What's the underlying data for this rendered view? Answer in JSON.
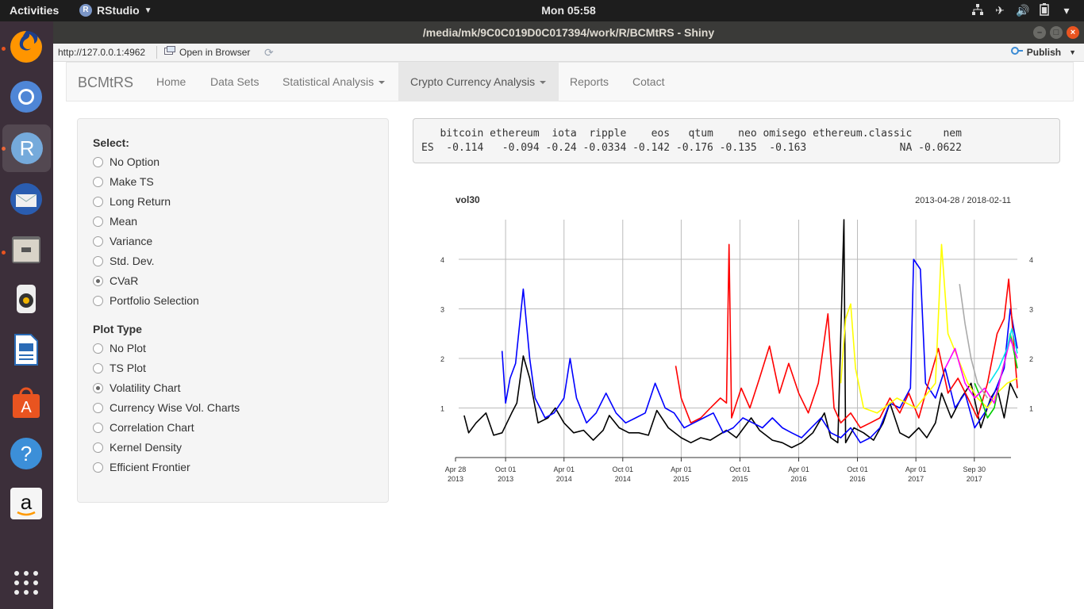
{
  "topbar": {
    "activities": "Activities",
    "app_name": "RStudio",
    "app_badge": "R",
    "clock": "Mon 05:58",
    "tray": [
      "network-icon",
      "airplane-icon",
      "volume-icon",
      "battery-icon",
      "system-menu-icon"
    ]
  },
  "dock": {
    "items": [
      "firefox-icon",
      "chromium-icon",
      "rstudio-icon",
      "thunderbird-icon",
      "files-icon",
      "rhythmbox-icon",
      "libreoffice-writer-icon",
      "software-center-icon",
      "help-icon",
      "amazon-icon",
      "show-applications-icon"
    ]
  },
  "window": {
    "title": "/media/mk/9C0C019D0C017394/work/R/BCMtRS - Shiny"
  },
  "addressbar": {
    "url": "http://127.0.0.1:4962",
    "open_in_browser": "Open in Browser",
    "publish": "Publish"
  },
  "navbar": {
    "brand": "BCMtRS",
    "items": [
      {
        "label": "Home"
      },
      {
        "label": "Data Sets"
      },
      {
        "label": "Statistical Analysis"
      },
      {
        "label": "Crypto Currency Analysis"
      },
      {
        "label": "Reports"
      },
      {
        "label": "Cotact"
      }
    ]
  },
  "sidebar": {
    "select_label": "Select:",
    "select_options": [
      "No Option",
      "Make TS",
      "Long Return",
      "Mean",
      "Variance",
      "Std. Dev.",
      "CVaR",
      "Portfolio Selection"
    ],
    "select_checked": "CVaR",
    "plot_label": "Plot Type",
    "plot_options": [
      "No Plot",
      "TS Plot",
      "Volatility Chart",
      "Currency Wise Vol. Charts",
      "Correlation Chart",
      "Kernel Density",
      "Efficient Frontier"
    ],
    "plot_checked": "Volatility Chart"
  },
  "output": {
    "header_row": "   bitcoin ethereum  iota  ripple    eos   qtum    neo omisego ethereum.classic     nem",
    "value_row": "ES  -0.114   -0.094 -0.24 -0.0334 -0.142 -0.176 -0.135  -0.163               NA -0.0622"
  },
  "chart_data": {
    "type": "line",
    "title": "vol30",
    "date_range": "2013-04-28 / 2018-02-11",
    "xlim": [
      "2013-04-28",
      "2018-02-11"
    ],
    "ylim": [
      0,
      4.8
    ],
    "y_ticks": [
      1,
      2,
      3,
      4
    ],
    "x_ticks": [
      {
        "date": "2013-04-28",
        "line1": "Apr 28",
        "line2": "2013"
      },
      {
        "date": "2013-10-01",
        "line1": "Oct 01",
        "line2": "2013"
      },
      {
        "date": "2014-04-01",
        "line1": "Apr 01",
        "line2": "2014"
      },
      {
        "date": "2014-10-01",
        "line1": "Oct 01",
        "line2": "2014"
      },
      {
        "date": "2015-04-01",
        "line1": "Apr 01",
        "line2": "2015"
      },
      {
        "date": "2015-10-01",
        "line1": "Oct 01",
        "line2": "2015"
      },
      {
        "date": "2016-04-01",
        "line1": "Apr 01",
        "line2": "2016"
      },
      {
        "date": "2016-10-01",
        "line1": "Oct 01",
        "line2": "2016"
      },
      {
        "date": "2017-04-01",
        "line1": "Apr 01",
        "line2": "2017"
      },
      {
        "date": "2017-09-30",
        "line1": "Sep 30",
        "line2": "2017"
      }
    ],
    "grid": true,
    "series": [
      {
        "color": "#000000",
        "points": [
          [
            "2013-05-25",
            0.85
          ],
          [
            "2013-06-08",
            0.5
          ],
          [
            "2013-07-01",
            0.7
          ],
          [
            "2013-08-01",
            0.9
          ],
          [
            "2013-08-25",
            0.45
          ],
          [
            "2013-09-20",
            0.5
          ],
          [
            "2013-10-20",
            0.9
          ],
          [
            "2013-11-05",
            1.1
          ],
          [
            "2013-11-25",
            2.05
          ],
          [
            "2013-12-15",
            1.6
          ],
          [
            "2014-01-10",
            0.7
          ],
          [
            "2014-02-10",
            0.8
          ],
          [
            "2014-03-05",
            1.0
          ],
          [
            "2014-04-01",
            0.7
          ],
          [
            "2014-05-01",
            0.5
          ],
          [
            "2014-06-01",
            0.55
          ],
          [
            "2014-07-01",
            0.35
          ],
          [
            "2014-08-01",
            0.55
          ],
          [
            "2014-08-20",
            0.85
          ],
          [
            "2014-09-20",
            0.6
          ],
          [
            "2014-10-20",
            0.5
          ],
          [
            "2014-11-20",
            0.5
          ],
          [
            "2014-12-20",
            0.45
          ],
          [
            "2015-01-15",
            0.95
          ],
          [
            "2015-02-20",
            0.6
          ],
          [
            "2015-04-01",
            0.4
          ],
          [
            "2015-05-01",
            0.3
          ],
          [
            "2015-06-01",
            0.4
          ],
          [
            "2015-07-01",
            0.35
          ],
          [
            "2015-08-20",
            0.55
          ],
          [
            "2015-09-20",
            0.4
          ],
          [
            "2015-11-05",
            0.8
          ],
          [
            "2015-12-01",
            0.55
          ],
          [
            "2016-01-10",
            0.35
          ],
          [
            "2016-02-10",
            0.3
          ],
          [
            "2016-03-10",
            0.2
          ],
          [
            "2016-04-10",
            0.3
          ],
          [
            "2016-05-15",
            0.5
          ],
          [
            "2016-06-20",
            0.9
          ],
          [
            "2016-07-10",
            0.4
          ],
          [
            "2016-08-01",
            0.3
          ],
          [
            "2016-08-20",
            4.8
          ],
          [
            "2016-08-25",
            0.3
          ],
          [
            "2016-09-20",
            0.6
          ],
          [
            "2016-10-20",
            0.5
          ],
          [
            "2016-11-20",
            0.35
          ],
          [
            "2016-12-20",
            0.7
          ],
          [
            "2017-01-10",
            1.1
          ],
          [
            "2017-02-10",
            0.5
          ],
          [
            "2017-03-10",
            0.4
          ],
          [
            "2017-04-10",
            0.6
          ],
          [
            "2017-05-05",
            0.4
          ],
          [
            "2017-06-01",
            0.7
          ],
          [
            "2017-06-20",
            1.3
          ],
          [
            "2017-07-20",
            0.8
          ],
          [
            "2017-08-20",
            1.2
          ],
          [
            "2017-09-20",
            1.5
          ],
          [
            "2017-10-20",
            0.6
          ],
          [
            "2017-11-20",
            1.2
          ],
          [
            "2017-12-10",
            1.4
          ],
          [
            "2018-01-01",
            0.8
          ],
          [
            "2018-01-20",
            1.5
          ],
          [
            "2018-02-11",
            1.2
          ]
        ]
      },
      {
        "color": "#0000ff",
        "points": [
          [
            "2013-09-20",
            2.15
          ],
          [
            "2013-10-01",
            1.1
          ],
          [
            "2013-10-15",
            1.6
          ],
          [
            "2013-11-01",
            1.9
          ],
          [
            "2013-11-25",
            3.4
          ],
          [
            "2013-12-15",
            2.0
          ],
          [
            "2014-01-01",
            1.2
          ],
          [
            "2014-02-01",
            0.8
          ],
          [
            "2014-03-01",
            0.9
          ],
          [
            "2014-04-01",
            1.2
          ],
          [
            "2014-04-20",
            2.0
          ],
          [
            "2014-05-10",
            1.2
          ],
          [
            "2014-06-10",
            0.7
          ],
          [
            "2014-07-10",
            0.9
          ],
          [
            "2014-08-10",
            1.3
          ],
          [
            "2014-09-10",
            0.9
          ],
          [
            "2014-10-10",
            0.7
          ],
          [
            "2014-11-10",
            0.8
          ],
          [
            "2014-12-10",
            0.9
          ],
          [
            "2015-01-10",
            1.5
          ],
          [
            "2015-02-10",
            1.0
          ],
          [
            "2015-03-10",
            0.9
          ],
          [
            "2015-04-10",
            0.6
          ],
          [
            "2015-05-10",
            0.7
          ],
          [
            "2015-06-10",
            0.8
          ],
          [
            "2015-07-10",
            0.9
          ],
          [
            "2015-08-10",
            0.5
          ],
          [
            "2015-09-10",
            0.6
          ],
          [
            "2015-10-10",
            0.8
          ],
          [
            "2015-11-10",
            0.7
          ],
          [
            "2015-12-10",
            0.6
          ],
          [
            "2016-01-10",
            0.8
          ],
          [
            "2016-02-10",
            0.6
          ],
          [
            "2016-03-10",
            0.5
          ],
          [
            "2016-04-10",
            0.4
          ],
          [
            "2016-05-10",
            0.6
          ],
          [
            "2016-06-10",
            0.8
          ],
          [
            "2016-07-10",
            0.5
          ],
          [
            "2016-08-10",
            0.4
          ],
          [
            "2016-09-10",
            0.6
          ],
          [
            "2016-10-10",
            0.3
          ],
          [
            "2016-11-10",
            0.4
          ],
          [
            "2016-12-10",
            0.6
          ],
          [
            "2017-01-10",
            1.1
          ],
          [
            "2017-02-10",
            1.0
          ],
          [
            "2017-03-15",
            1.4
          ],
          [
            "2017-03-25",
            4.0
          ],
          [
            "2017-04-15",
            3.8
          ],
          [
            "2017-05-01",
            1.5
          ],
          [
            "2017-06-01",
            1.2
          ],
          [
            "2017-07-01",
            1.8
          ],
          [
            "2017-08-01",
            1.0
          ],
          [
            "2017-09-01",
            1.3
          ],
          [
            "2017-10-01",
            0.6
          ],
          [
            "2017-11-01",
            0.9
          ],
          [
            "2017-12-01",
            1.3
          ],
          [
            "2018-01-01",
            1.8
          ],
          [
            "2018-01-20",
            3.0
          ],
          [
            "2018-02-11",
            2.2
          ]
        ]
      },
      {
        "color": "#ff0000",
        "points": [
          [
            "2015-03-15",
            1.85
          ],
          [
            "2015-04-01",
            1.2
          ],
          [
            "2015-05-01",
            0.7
          ],
          [
            "2015-06-01",
            0.8
          ],
          [
            "2015-07-01",
            1.0
          ],
          [
            "2015-08-01",
            1.2
          ],
          [
            "2015-08-20",
            1.1
          ],
          [
            "2015-08-28",
            4.3
          ],
          [
            "2015-09-05",
            0.8
          ],
          [
            "2015-10-05",
            1.4
          ],
          [
            "2015-11-01",
            1.0
          ],
          [
            "2015-12-01",
            1.6
          ],
          [
            "2016-01-01",
            2.25
          ],
          [
            "2016-02-01",
            1.3
          ],
          [
            "2016-03-01",
            1.9
          ],
          [
            "2016-04-01",
            1.3
          ],
          [
            "2016-05-01",
            0.9
          ],
          [
            "2016-06-01",
            1.5
          ],
          [
            "2016-07-01",
            2.9
          ],
          [
            "2016-07-20",
            1.0
          ],
          [
            "2016-08-10",
            0.7
          ],
          [
            "2016-09-10",
            0.9
          ],
          [
            "2016-10-10",
            0.6
          ],
          [
            "2016-11-10",
            0.7
          ],
          [
            "2016-12-10",
            0.8
          ],
          [
            "2017-01-10",
            1.2
          ],
          [
            "2017-02-10",
            0.9
          ],
          [
            "2017-03-10",
            1.3
          ],
          [
            "2017-04-10",
            0.8
          ],
          [
            "2017-05-10",
            1.5
          ],
          [
            "2017-06-10",
            2.2
          ],
          [
            "2017-07-10",
            1.3
          ],
          [
            "2017-08-10",
            1.6
          ],
          [
            "2017-09-10",
            1.2
          ],
          [
            "2017-10-10",
            0.8
          ],
          [
            "2017-11-10",
            1.5
          ],
          [
            "2017-12-10",
            2.5
          ],
          [
            "2018-01-01",
            2.8
          ],
          [
            "2018-01-15",
            3.6
          ],
          [
            "2018-02-11",
            1.4
          ]
        ]
      },
      {
        "color": "#ffff00",
        "points": [
          [
            "2016-08-10",
            1.5
          ],
          [
            "2016-08-25",
            2.8
          ],
          [
            "2016-09-10",
            3.1
          ],
          [
            "2016-09-25",
            1.8
          ],
          [
            "2016-10-20",
            1.0
          ],
          [
            "2016-12-01",
            0.9
          ],
          [
            "2017-02-01",
            1.2
          ],
          [
            "2017-04-01",
            1.0
          ],
          [
            "2017-06-01",
            1.5
          ],
          [
            "2017-06-20",
            4.3
          ],
          [
            "2017-07-10",
            2.5
          ],
          [
            "2017-08-10",
            2.0
          ],
          [
            "2017-09-10",
            1.5
          ],
          [
            "2017-10-10",
            1.2
          ],
          [
            "2017-11-10",
            1.0
          ],
          [
            "2017-12-10",
            1.3
          ],
          [
            "2018-01-10",
            1.5
          ],
          [
            "2018-02-11",
            1.6
          ]
        ]
      },
      {
        "color": "#00cc00",
        "points": [
          [
            "2017-10-01",
            1.5
          ],
          [
            "2017-10-20",
            1.2
          ],
          [
            "2017-11-10",
            0.8
          ],
          [
            "2017-12-01",
            1.0
          ],
          [
            "2017-12-20",
            1.6
          ],
          [
            "2018-01-05",
            2.0
          ],
          [
            "2018-01-20",
            2.5
          ],
          [
            "2018-02-11",
            1.8
          ]
        ]
      },
      {
        "color": "#ff00ff",
        "points": [
          [
            "2017-07-01",
            1.8
          ],
          [
            "2017-08-01",
            2.2
          ],
          [
            "2017-09-01",
            1.5
          ],
          [
            "2017-10-01",
            1.2
          ],
          [
            "2017-11-01",
            1.4
          ],
          [
            "2017-12-01",
            1.1
          ],
          [
            "2018-01-01",
            1.9
          ],
          [
            "2018-01-20",
            2.4
          ],
          [
            "2018-02-11",
            2.0
          ]
        ]
      },
      {
        "color": "#00e5ee",
        "points": [
          [
            "2017-11-15",
            1.5
          ],
          [
            "2017-12-15",
            1.8
          ],
          [
            "2018-01-10",
            2.2
          ],
          [
            "2018-01-25",
            2.6
          ],
          [
            "2018-02-11",
            2.1
          ]
        ]
      },
      {
        "color": "#aaaaaa",
        "points": [
          [
            "2017-08-15",
            3.5
          ],
          [
            "2017-09-01",
            2.7
          ],
          [
            "2017-09-20",
            2.0
          ],
          [
            "2017-10-10",
            1.5
          ],
          [
            "2017-11-10",
            1.2
          ]
        ]
      }
    ],
    "y_axis_right": true
  }
}
